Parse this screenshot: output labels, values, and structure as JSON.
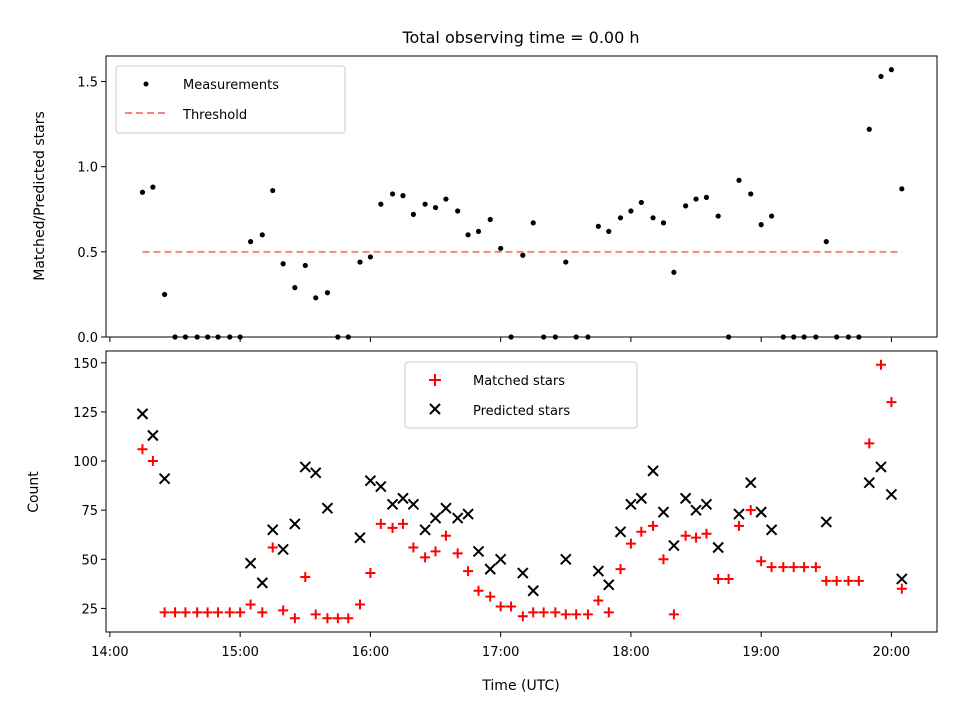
{
  "chart_data": [
    {
      "type": "scatter",
      "title": "Total observing time = 0.00 h",
      "xlabel": "",
      "ylabel": "Matched/Predicted stars",
      "xlim": [
        13.97,
        20.35
      ],
      "ylim": [
        0,
        1.65
      ],
      "yticks": [
        0,
        0.5,
        1.0,
        1.5
      ],
      "ytick_labels": [
        "0.0",
        "0.5",
        "1.0",
        "1.5"
      ],
      "grid": false,
      "legend_position": "upper-left",
      "legend": [
        "Measurements",
        "Threshold"
      ],
      "series": [
        {
          "name": "Measurements",
          "marker": "dot",
          "color": "#000000",
          "x": [
            14.25,
            14.33,
            14.42,
            14.5,
            14.58,
            14.67,
            14.75,
            14.83,
            14.92,
            15.0,
            15.08,
            15.17,
            15.25,
            15.33,
            15.42,
            15.5,
            15.58,
            15.67,
            15.75,
            15.83,
            15.92,
            16.0,
            16.08,
            16.17,
            16.25,
            16.33,
            16.42,
            16.5,
            16.58,
            16.67,
            16.75,
            16.83,
            16.92,
            17.0,
            17.08,
            17.17,
            17.25,
            17.33,
            17.42,
            17.5,
            17.58,
            17.67,
            17.75,
            17.83,
            17.92,
            18.0,
            18.08,
            18.17,
            18.25,
            18.33,
            18.42,
            18.5,
            18.58,
            18.67,
            18.75,
            18.83,
            18.92,
            19.0,
            19.08,
            19.17,
            19.25,
            19.33,
            19.42,
            19.5,
            19.58,
            19.67,
            19.75,
            19.83,
            19.92,
            20.0,
            20.08
          ],
          "y": [
            0.85,
            0.88,
            0.25,
            0,
            0,
            0,
            0,
            0,
            0,
            0,
            0.56,
            0.6,
            0.86,
            0.43,
            0.29,
            0.42,
            0.23,
            0.26,
            0,
            0,
            0.44,
            0.47,
            0.78,
            0.84,
            0.83,
            0.72,
            0.78,
            0.76,
            0.81,
            0.74,
            0.6,
            0.62,
            0.69,
            0.52,
            0,
            0.48,
            0.67,
            0,
            0,
            0.44,
            0,
            0,
            0.65,
            0.62,
            0.7,
            0.74,
            0.79,
            0.7,
            0.67,
            0.38,
            0.77,
            0.81,
            0.82,
            0.71,
            0,
            0.92,
            0.84,
            0.66,
            0.71,
            0,
            0,
            0,
            0,
            0.56,
            0,
            0,
            0,
            1.22,
            1.53,
            1.57,
            0.87
          ]
        },
        {
          "name": "Threshold",
          "type": "line",
          "style": "dashed",
          "color": "#ff8080",
          "x": [
            14.25,
            20.08
          ],
          "y": [
            0.5,
            0.5
          ]
        }
      ]
    },
    {
      "type": "scatter",
      "title": "",
      "xlabel": "Time (UTC)",
      "ylabel": "Count",
      "xlim": [
        13.97,
        20.35
      ],
      "ylim": [
        13,
        156
      ],
      "yticks": [
        25,
        50,
        75,
        100,
        125,
        150
      ],
      "ytick_labels": [
        "25",
        "50",
        "75",
        "100",
        "125",
        "150"
      ],
      "xticks": [
        14,
        15,
        16,
        17,
        18,
        19,
        20
      ],
      "xtick_labels": [
        "14:00",
        "15:00",
        "16:00",
        "17:00",
        "18:00",
        "19:00",
        "20:00"
      ],
      "grid": false,
      "legend_position": "upper-center",
      "legend": [
        "Matched stars",
        "Predicted stars"
      ],
      "series": [
        {
          "name": "Matched stars",
          "marker": "plus",
          "color": "#ff0000",
          "x": [
            14.25,
            14.33,
            14.42,
            14.5,
            14.58,
            14.67,
            14.75,
            14.83,
            14.92,
            15.0,
            15.08,
            15.17,
            15.25,
            15.33,
            15.42,
            15.5,
            15.58,
            15.67,
            15.75,
            15.83,
            15.92,
            16.0,
            16.08,
            16.17,
            16.25,
            16.33,
            16.42,
            16.5,
            16.58,
            16.67,
            16.75,
            16.83,
            16.92,
            17.0,
            17.08,
            17.17,
            17.25,
            17.33,
            17.42,
            17.5,
            17.58,
            17.67,
            17.75,
            17.83,
            17.92,
            18.0,
            18.08,
            18.17,
            18.25,
            18.33,
            18.42,
            18.5,
            18.58,
            18.67,
            18.75,
            18.83,
            18.92,
            19.0,
            19.08,
            19.17,
            19.25,
            19.33,
            19.42,
            19.5,
            19.58,
            19.67,
            19.75,
            19.83,
            19.92,
            20.0,
            20.08
          ],
          "y": [
            106,
            100,
            23,
            23,
            23,
            23,
            23,
            23,
            23,
            23,
            27,
            23,
            56,
            24,
            20,
            41,
            22,
            20,
            20,
            20,
            27,
            43,
            68,
            66,
            68,
            56,
            51,
            54,
            62,
            53,
            44,
            34,
            31,
            26,
            26,
            21,
            23,
            23,
            23,
            22,
            22,
            22,
            29,
            23,
            45,
            58,
            64,
            67,
            50,
            22,
            62,
            61,
            63,
            40,
            40,
            67,
            75,
            49,
            46,
            46,
            46,
            46,
            46,
            39,
            39,
            39,
            39,
            109,
            149,
            130,
            35
          ]
        },
        {
          "name": "Predicted stars",
          "marker": "x",
          "color": "#000000",
          "x": [
            14.25,
            14.33,
            14.42,
            15.08,
            15.17,
            15.25,
            15.33,
            15.42,
            15.5,
            15.58,
            15.67,
            15.92,
            16.0,
            16.08,
            16.17,
            16.25,
            16.33,
            16.42,
            16.5,
            16.58,
            16.67,
            16.75,
            16.83,
            16.92,
            17.0,
            17.17,
            17.25,
            17.5,
            17.75,
            17.83,
            17.92,
            18.0,
            18.08,
            18.17,
            18.25,
            18.33,
            18.42,
            18.5,
            18.58,
            18.67,
            18.83,
            18.92,
            19.0,
            19.08,
            19.5,
            19.83,
            19.92,
            20.0,
            20.08
          ],
          "y": [
            124,
            113,
            91,
            48,
            38,
            65,
            55,
            68,
            97,
            94,
            76,
            61,
            90,
            87,
            78,
            81,
            78,
            65,
            71,
            76,
            71,
            73,
            54,
            45,
            50,
            43,
            34,
            50,
            44,
            37,
            64,
            78,
            81,
            95,
            74,
            57,
            81,
            75,
            78,
            56,
            73,
            89,
            74,
            65,
            69,
            89,
            97,
            83,
            40
          ]
        }
      ]
    }
  ]
}
